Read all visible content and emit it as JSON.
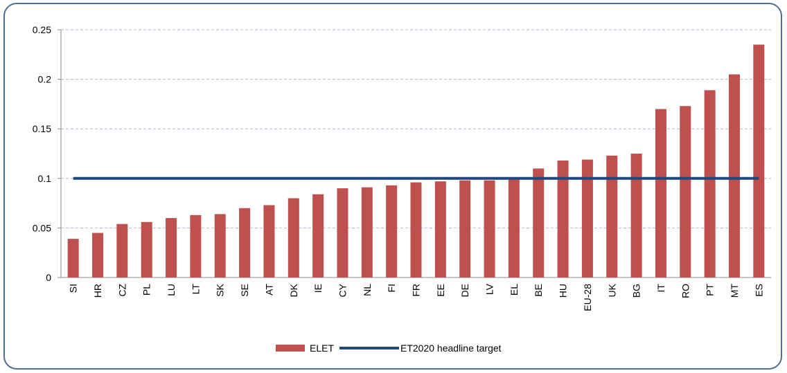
{
  "chart_data": {
    "type": "bar",
    "categories": [
      "SI",
      "HR",
      "CZ",
      "PL",
      "LU",
      "LT",
      "SK",
      "SE",
      "AT",
      "DK",
      "IE",
      "CY",
      "NL",
      "FI",
      "FR",
      "EE",
      "DE",
      "LV",
      "EL",
      "BE",
      "HU",
      "EU-28",
      "UK",
      "BG",
      "IT",
      "RO",
      "PT",
      "MT",
      "ES"
    ],
    "series": [
      {
        "name": "ELET",
        "type": "bar",
        "color": "#c0504d",
        "values": [
          0.039,
          0.045,
          0.054,
          0.056,
          0.06,
          0.063,
          0.064,
          0.07,
          0.073,
          0.08,
          0.084,
          0.09,
          0.091,
          0.093,
          0.096,
          0.097,
          0.098,
          0.098,
          0.101,
          0.11,
          0.118,
          0.119,
          0.123,
          0.125,
          0.17,
          0.173,
          0.189,
          0.205,
          0.235
        ]
      },
      {
        "name": "ET2020 headline target",
        "type": "line",
        "color": "#1f497d",
        "values": [
          0.1,
          0.1,
          0.1,
          0.1,
          0.1,
          0.1,
          0.1,
          0.1,
          0.1,
          0.1,
          0.1,
          0.1,
          0.1,
          0.1,
          0.1,
          0.1,
          0.1,
          0.1,
          0.1,
          0.1,
          0.1,
          0.1,
          0.1,
          0.1,
          0.1,
          0.1,
          0.1,
          0.1,
          0.1
        ]
      }
    ],
    "ylim": [
      0,
      0.25
    ],
    "yticks": [
      0,
      0.05,
      0.1,
      0.15,
      0.2,
      0.25
    ],
    "grid": true,
    "legend": "bottom"
  }
}
